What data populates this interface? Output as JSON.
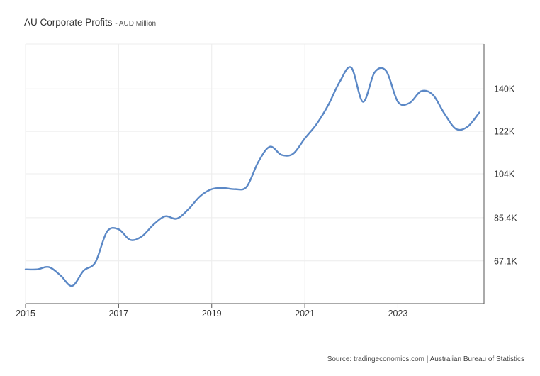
{
  "chart_data": {
    "type": "line",
    "title": "AU Corporate Profits",
    "subtitle": "- AUD Million",
    "xlabel": "",
    "ylabel": "",
    "x_ticks": [
      "2015",
      "2017",
      "2019",
      "2021",
      "2023"
    ],
    "y_ticks": [
      {
        "value": 67.1,
        "label": "67.1K"
      },
      {
        "value": 85.4,
        "label": "85.4K"
      },
      {
        "value": 104,
        "label": "104K"
      },
      {
        "value": 122,
        "label": "122K"
      },
      {
        "value": 140,
        "label": "140K"
      }
    ],
    "xlim": [
      2015.0,
      2024.85
    ],
    "ylim": [
      49,
      159
    ],
    "grid": true,
    "y_axis_position": "right",
    "series": [
      {
        "color": "#5b88c6",
        "x": [
          2015.0,
          2015.25,
          2015.5,
          2015.75,
          2016.0,
          2016.25,
          2016.5,
          2016.75,
          2017.0,
          2017.25,
          2017.5,
          2017.75,
          2018.0,
          2018.25,
          2018.5,
          2018.75,
          2019.0,
          2019.25,
          2019.5,
          2019.75,
          2020.0,
          2020.25,
          2020.5,
          2020.75,
          2021.0,
          2021.25,
          2021.5,
          2021.75,
          2022.0,
          2022.25,
          2022.5,
          2022.75,
          2023.0,
          2023.25,
          2023.5,
          2023.75,
          2024.0,
          2024.25,
          2024.5,
          2024.75
        ],
        "y": [
          63.5,
          63.5,
          64.5,
          61.0,
          56.5,
          63.0,
          66.5,
          79.5,
          80.5,
          76.0,
          77.5,
          82.5,
          86.0,
          85.0,
          89.0,
          94.5,
          97.5,
          98.0,
          97.5,
          98.5,
          109.0,
          115.5,
          112.0,
          112.5,
          119.0,
          125.0,
          133.0,
          143.0,
          149.0,
          134.5,
          147.0,
          147.5,
          134.5,
          134.0,
          139.0,
          137.5,
          129.5,
          123.0,
          124.0,
          130.0
        ]
      }
    ],
    "source": "Source: tradingeconomics.com | Australian Bureau of Statistics"
  }
}
